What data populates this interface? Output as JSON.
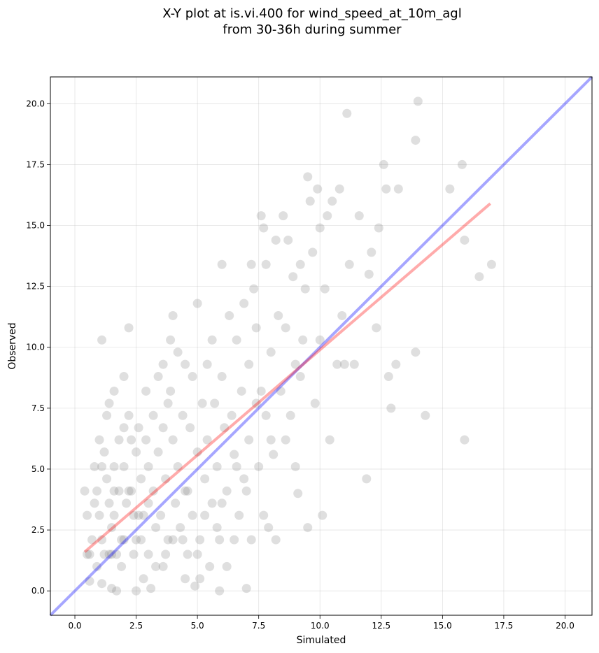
{
  "chart_data": {
    "type": "scatter",
    "title_line1": "X-Y plot at is.vi.400 for wind_speed_at_10m_agl",
    "title_line2": "from 30-36h during summer",
    "xlabel": "Simulated",
    "ylabel": "Observed",
    "xlim": [
      -1.0,
      21.1
    ],
    "ylim": [
      -1.0,
      21.1
    ],
    "xticks": [
      0.0,
      2.5,
      5.0,
      7.5,
      10.0,
      12.5,
      15.0,
      17.5,
      20.0
    ],
    "yticks": [
      0.0,
      2.5,
      5.0,
      7.5,
      10.0,
      12.5,
      15.0,
      17.5,
      20.0
    ],
    "xtick_labels": [
      "0.0",
      "2.5",
      "5.0",
      "7.5",
      "10.0",
      "12.5",
      "15.0",
      "17.5",
      "20.0"
    ],
    "ytick_labels": [
      "0.0",
      "2.5",
      "5.0",
      "7.5",
      "10.0",
      "12.5",
      "15.0",
      "17.5",
      "20.0"
    ],
    "grid": true,
    "colors": {
      "points": "#808080",
      "one_to_one": "#0000ff",
      "fit": "#ff0000"
    },
    "one_to_one_line": {
      "x": [
        -1.0,
        21.1
      ],
      "y": [
        -1.0,
        21.1
      ]
    },
    "fit_line": {
      "x": [
        0.4,
        16.95
      ],
      "y": [
        1.6,
        15.9
      ]
    },
    "points": [
      [
        0.4,
        4.1
      ],
      [
        0.5,
        3.1
      ],
      [
        0.5,
        1.5
      ],
      [
        0.6,
        0.4
      ],
      [
        0.7,
        2.1
      ],
      [
        0.8,
        5.1
      ],
      [
        0.8,
        3.6
      ],
      [
        0.9,
        4.1
      ],
      [
        0.9,
        1.0
      ],
      [
        1.0,
        6.2
      ],
      [
        1.0,
        3.1
      ],
      [
        1.1,
        10.3
      ],
      [
        1.1,
        5.1
      ],
      [
        1.1,
        2.1
      ],
      [
        1.1,
        0.3
      ],
      [
        1.2,
        5.7
      ],
      [
        1.3,
        7.2
      ],
      [
        1.3,
        4.6
      ],
      [
        1.4,
        3.6
      ],
      [
        1.4,
        1.5
      ],
      [
        1.4,
        7.7
      ],
      [
        1.5,
        2.6
      ],
      [
        1.5,
        0.1
      ],
      [
        1.6,
        8.2
      ],
      [
        1.6,
        5.1
      ],
      [
        1.6,
        4.1
      ],
      [
        1.6,
        3.1
      ],
      [
        1.7,
        0.0
      ],
      [
        1.8,
        6.2
      ],
      [
        1.8,
        4.1
      ],
      [
        1.9,
        2.1
      ],
      [
        1.9,
        1.0
      ],
      [
        2.0,
        8.8
      ],
      [
        2.0,
        6.7
      ],
      [
        2.0,
        5.1
      ],
      [
        2.1,
        3.6
      ],
      [
        2.2,
        10.8
      ],
      [
        2.2,
        7.2
      ],
      [
        2.3,
        6.2
      ],
      [
        2.3,
        4.1
      ],
      [
        2.4,
        3.1
      ],
      [
        2.4,
        1.5
      ],
      [
        2.5,
        5.7
      ],
      [
        2.5,
        2.1
      ],
      [
        2.5,
        0.0
      ],
      [
        2.6,
        6.7
      ],
      [
        2.7,
        4.6
      ],
      [
        2.8,
        3.1
      ],
      [
        2.8,
        0.5
      ],
      [
        2.9,
        8.2
      ],
      [
        2.9,
        6.2
      ],
      [
        3.0,
        5.1
      ],
      [
        3.0,
        1.5
      ],
      [
        3.1,
        0.1
      ],
      [
        3.2,
        7.2
      ],
      [
        3.2,
        4.1
      ],
      [
        3.3,
        2.6
      ],
      [
        3.4,
        8.8
      ],
      [
        3.4,
        5.7
      ],
      [
        3.5,
        3.1
      ],
      [
        3.6,
        9.3
      ],
      [
        3.6,
        6.7
      ],
      [
        3.6,
        1.0
      ],
      [
        3.7,
        4.6
      ],
      [
        3.8,
        7.7
      ],
      [
        3.8,
        2.1
      ],
      [
        3.9,
        10.3
      ],
      [
        3.9,
        8.2
      ],
      [
        4.0,
        11.3
      ],
      [
        4.0,
        6.2
      ],
      [
        4.1,
        3.6
      ],
      [
        4.2,
        9.8
      ],
      [
        4.2,
        5.1
      ],
      [
        4.3,
        2.6
      ],
      [
        4.4,
        7.2
      ],
      [
        4.5,
        9.3
      ],
      [
        4.5,
        4.1
      ],
      [
        4.5,
        0.5
      ],
      [
        4.6,
        1.5
      ],
      [
        4.7,
        6.7
      ],
      [
        4.8,
        8.8
      ],
      [
        4.8,
        3.1
      ],
      [
        4.9,
        0.2
      ],
      [
        5.0,
        11.8
      ],
      [
        5.0,
        5.7
      ],
      [
        5.1,
        2.1
      ],
      [
        5.1,
        0.5
      ],
      [
        5.2,
        7.7
      ],
      [
        5.3,
        4.6
      ],
      [
        5.4,
        9.3
      ],
      [
        5.4,
        6.2
      ],
      [
        5.5,
        1.0
      ],
      [
        5.6,
        10.3
      ],
      [
        5.6,
        3.6
      ],
      [
        5.7,
        7.7
      ],
      [
        5.8,
        5.1
      ],
      [
        5.8,
        2.6
      ],
      [
        5.9,
        0.0
      ],
      [
        6.0,
        13.4
      ],
      [
        6.0,
        8.8
      ],
      [
        6.1,
        6.7
      ],
      [
        6.2,
        4.1
      ],
      [
        6.2,
        1.0
      ],
      [
        6.3,
        11.3
      ],
      [
        6.4,
        7.2
      ],
      [
        6.5,
        5.6
      ],
      [
        6.5,
        2.1
      ],
      [
        6.6,
        10.3
      ],
      [
        6.7,
        3.1
      ],
      [
        6.8,
        8.2
      ],
      [
        6.9,
        11.8
      ],
      [
        6.9,
        4.6
      ],
      [
        7.0,
        0.1
      ],
      [
        7.1,
        9.3
      ],
      [
        7.1,
        6.2
      ],
      [
        7.2,
        13.4
      ],
      [
        7.2,
        2.1
      ],
      [
        7.3,
        12.4
      ],
      [
        7.4,
        10.8
      ],
      [
        7.5,
        5.1
      ],
      [
        7.6,
        15.4
      ],
      [
        7.6,
        8.2
      ],
      [
        7.7,
        14.9
      ],
      [
        7.7,
        3.1
      ],
      [
        7.8,
        13.4
      ],
      [
        7.8,
        7.2
      ],
      [
        7.9,
        2.6
      ],
      [
        8.0,
        9.8
      ],
      [
        8.1,
        5.6
      ],
      [
        8.2,
        14.4
      ],
      [
        8.2,
        2.1
      ],
      [
        8.3,
        11.3
      ],
      [
        8.4,
        8.2
      ],
      [
        8.5,
        15.4
      ],
      [
        8.6,
        6.2
      ],
      [
        8.7,
        14.4
      ],
      [
        8.8,
        7.2
      ],
      [
        8.9,
        12.9
      ],
      [
        9.0,
        5.1
      ],
      [
        9.1,
        4.0
      ],
      [
        9.2,
        13.4
      ],
      [
        9.2,
        8.8
      ],
      [
        9.3,
        10.3
      ],
      [
        9.4,
        12.4
      ],
      [
        9.5,
        17.0
      ],
      [
        9.5,
        2.6
      ],
      [
        9.6,
        16.0
      ],
      [
        9.7,
        13.9
      ],
      [
        9.8,
        7.7
      ],
      [
        9.9,
        16.5
      ],
      [
        10.0,
        14.9
      ],
      [
        10.1,
        3.1
      ],
      [
        10.2,
        12.4
      ],
      [
        10.3,
        15.4
      ],
      [
        10.4,
        6.2
      ],
      [
        10.5,
        16.0
      ],
      [
        10.7,
        9.3
      ],
      [
        10.8,
        16.5
      ],
      [
        10.9,
        11.3
      ],
      [
        11.0,
        9.3
      ],
      [
        11.1,
        19.6
      ],
      [
        11.2,
        13.4
      ],
      [
        11.4,
        9.3
      ],
      [
        11.6,
        15.4
      ],
      [
        11.9,
        4.6
      ],
      [
        12.0,
        13.0
      ],
      [
        12.1,
        13.9
      ],
      [
        12.3,
        10.8
      ],
      [
        12.4,
        14.9
      ],
      [
        12.6,
        17.5
      ],
      [
        12.7,
        16.5
      ],
      [
        12.8,
        8.8
      ],
      [
        12.9,
        7.5
      ],
      [
        13.1,
        9.3
      ],
      [
        13.2,
        16.5
      ],
      [
        13.9,
        9.8
      ],
      [
        13.9,
        18.5
      ],
      [
        14.0,
        20.1
      ],
      [
        14.3,
        7.2
      ],
      [
        15.3,
        16.5
      ],
      [
        15.8,
        17.5
      ],
      [
        15.9,
        14.4
      ],
      [
        15.9,
        6.2
      ],
      [
        16.5,
        12.9
      ],
      [
        17.0,
        13.4
      ],
      [
        2.6,
        3.1
      ],
      [
        1.5,
        1.5
      ],
      [
        2.0,
        2.1
      ],
      [
        3.3,
        1.0
      ],
      [
        4.0,
        2.1
      ],
      [
        5.0,
        1.5
      ],
      [
        6.0,
        3.6
      ],
      [
        7.0,
        4.1
      ],
      [
        8.0,
        6.2
      ],
      [
        9.0,
        9.3
      ],
      [
        10.0,
        10.3
      ],
      [
        1.7,
        1.5
      ],
      [
        2.2,
        4.1
      ],
      [
        3.0,
        3.6
      ],
      [
        4.4,
        2.1
      ],
      [
        5.3,
        3.1
      ],
      [
        6.6,
        5.1
      ],
      [
        7.4,
        7.7
      ],
      [
        8.6,
        10.8
      ],
      [
        0.6,
        1.5
      ],
      [
        1.2,
        1.5
      ],
      [
        2.7,
        2.1
      ],
      [
        3.7,
        1.5
      ],
      [
        4.6,
        4.1
      ],
      [
        5.9,
        2.1
      ]
    ]
  }
}
